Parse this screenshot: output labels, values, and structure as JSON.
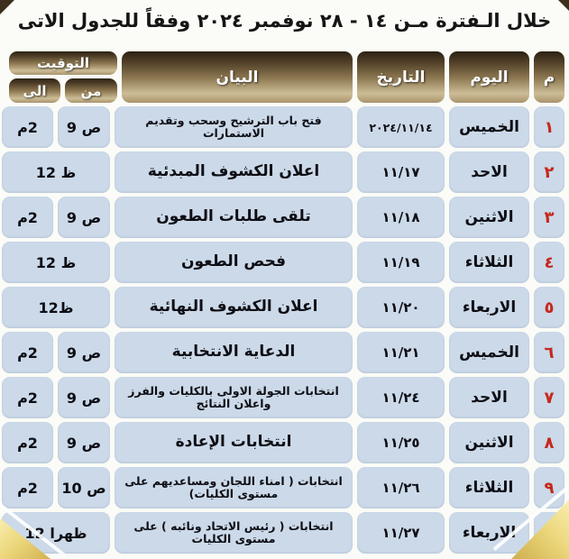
{
  "title": "خلال الـفترة مـن ١٤ - ٢٨ نوفمبر ٢٠٢٤ وفقاً للجدول الاتى",
  "table": {
    "headers": {
      "num": "م",
      "day": "اليوم",
      "date": "التاريخ",
      "statement": "البيان",
      "timing": "التوقيت",
      "from": "من",
      "to": "الى"
    },
    "rows": [
      {
        "num": "١",
        "day": "الخميس",
        "date": "٢٠٢٤/١١/١٤",
        "statement": "فتح باب الترشيح وسحب وتقديم الاستمارات",
        "from": "9 ص",
        "to": "م2"
      },
      {
        "num": "٢",
        "day": "الاحد",
        "date": "١١/١٧",
        "statement": "اعلان الكشوف المبدئية",
        "span": "12 ظ"
      },
      {
        "num": "٣",
        "day": "الاثنين",
        "date": "١١/١٨",
        "statement": "تلقى طلبات الطعون",
        "from": "9 ص",
        "to": "م2"
      },
      {
        "num": "٤",
        "day": "الثلاثاء",
        "date": "١١/١٩",
        "statement": "فحص الطعون",
        "span": "12 ظ"
      },
      {
        "num": "٥",
        "day": "الاربعاء",
        "date": "١١/٢٠",
        "statement": "اعلان الكشوف النهائية",
        "span": "12ظ"
      },
      {
        "num": "٦",
        "day": "الخميس",
        "date": "١١/٢١",
        "statement": "الدعاية الانتخابية",
        "from": "9 ص",
        "to": "م2"
      },
      {
        "num": "٧",
        "day": "الاحد",
        "date": "١١/٢٤",
        "statement": "انتخابات الجولة الاولى بالكليات والفرز واعلان النتائج",
        "from": "9 ص",
        "to": "م2"
      },
      {
        "num": "٨",
        "day": "الاثنين",
        "date": "١١/٢٥",
        "statement": "انتخابات الإعادة",
        "from": "9 ص",
        "to": "م2"
      },
      {
        "num": "٩",
        "day": "الثلاثاء",
        "date": "١١/٢٦",
        "statement": "انتخابات ( امناء اللجان ومساعديهم على مستوى الكليات)",
        "from": "10 ص",
        "to": "م2"
      },
      {
        "num": "١٠",
        "day": "الاربعاء",
        "date": "١١/٢٧",
        "statement": "انتخابات ( رئيس الاتحاد ونائبه ) على مستوى الكليات",
        "span": "12 ظهرا"
      }
    ]
  },
  "colors": {
    "row_cell_bg": "#cbd9e9",
    "row_number_red": "#c6281c",
    "header_gold_dark": "#2b2113",
    "header_gold_light": "#cdbd97",
    "ribbon_gold": "#ecd77c",
    "page_bg": "#fbfbf7"
  }
}
